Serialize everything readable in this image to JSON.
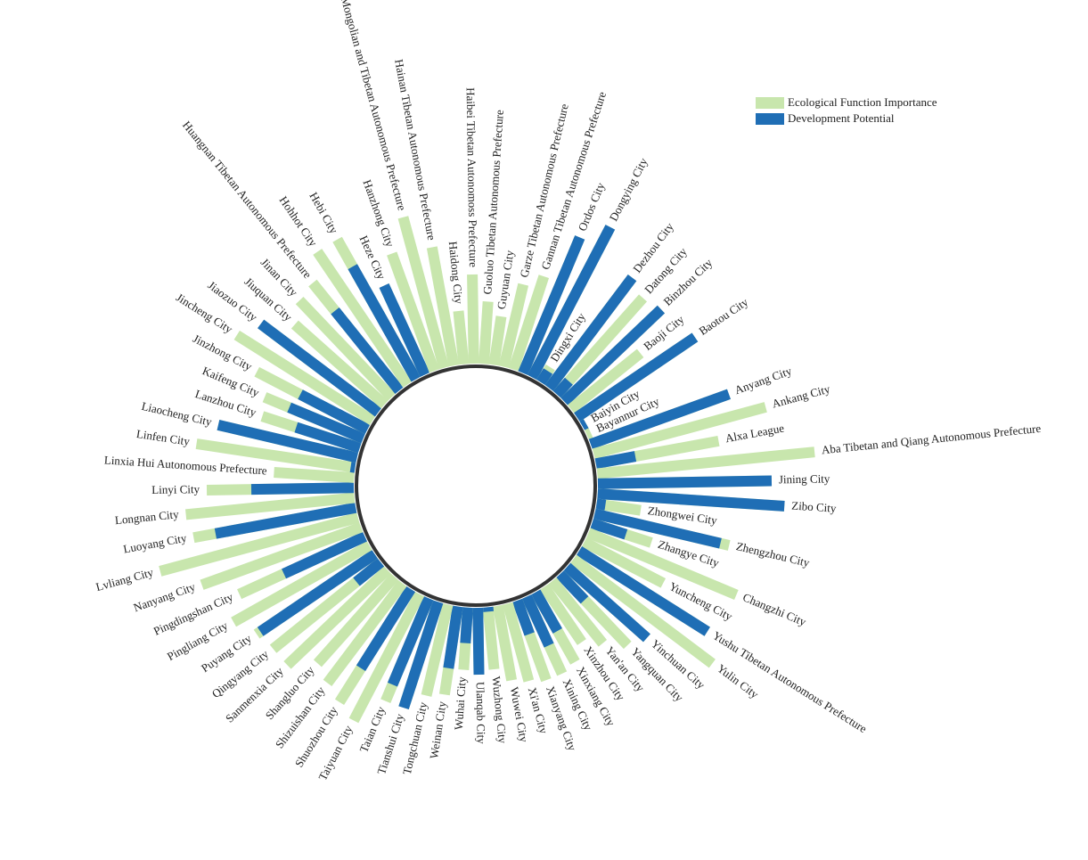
{
  "colors": {
    "eco": "#c8e6ad",
    "dev": "#1f6eb5",
    "ring": "#333333"
  },
  "legend": {
    "eco_label": "Ecological Function Importance",
    "dev_label": "Development Potential"
  },
  "chart_data": {
    "type": "radial-bar",
    "series_names": [
      "Ecological Function Importance",
      "Development Potential"
    ],
    "categories": [
      "Haidong City",
      "Haibei Tibetan Autonomoss Prefecture",
      "Guoluo Tibetan Autonomous Prefecture",
      "Guyuan City",
      "Garze Tibetan Autonomous Prefecture",
      "Gannan Tibetan Autonomous Prefecture",
      "Ordos City",
      "Dongying City",
      "Dingxi City",
      "Dezhou City",
      "Datong City",
      "Binzhou City",
      "Baoji City",
      "Baotou City",
      "Baiyin City",
      "Bayannur City",
      "Anyang City",
      "Ankang City",
      "Alxa League",
      "Aba Tibetan and Qiang Autonomous Prefecture",
      "Jining City",
      "Zibo City",
      "Zhongwei City",
      "Zhengzhou City",
      "Zhangye City",
      "Changzhi City",
      "Yuncheng City",
      "Yushu Tibetan Autonomous Prefecture",
      "Yulin City",
      "Yinchuan City",
      "Yangquan City",
      "Yan'an City",
      "Xinzhou City",
      "Xinxiang City",
      "Xining City",
      "Xianyang City",
      "Xi'an City",
      "Wuwei City",
      "Wuzhong City",
      "Ulanqab City",
      "Wuhai City",
      "Weinan City",
      "Tongchuan City",
      "Tianshui City",
      "Taian City",
      "Taiyuan City",
      "Shuozhou City",
      "Shizuishan City",
      "Shangluo City",
      "Sanmenxia City",
      "Qingyang City",
      "Puyang City",
      "Pingliang City",
      "Pingdingshan City",
      "Nanyang City",
      "Lvliang City",
      "Luoyang City",
      "Longnan City",
      "Linyi City",
      "Linxia Hui Autonomous Prefecture",
      "Linfen City",
      "Liaocheng City",
      "Lanzhou City",
      "Kaifeng City",
      "Jinzhong City",
      "Jincheng City",
      "Jiaozuo City",
      "Jiuquan City",
      "Jinan City",
      "Huangnan Tibetan Autonomous Prefecture",
      "Hohhot City",
      "Hebi City",
      "Heze City",
      "Hanzhong City",
      "Haixi Mongolian and Tibetan Autonomous Prefecture",
      "Hainan Tibetan Autonomous Prefecture"
    ],
    "eco": [
      60,
      100,
      70,
      55,
      95,
      110,
      35,
      30,
      20,
      60,
      145,
      100,
      100,
      100,
      5,
      5,
      40,
      200,
      140,
      245,
      175,
      185,
      50,
      155,
      70,
      180,
      100,
      140,
      195,
      120,
      110,
      90,
      75,
      90,
      95,
      95,
      90,
      85,
      70,
      55,
      70,
      100,
      105,
      110,
      125,
      160,
      150,
      140,
      130,
      155,
      155,
      160,
      175,
      155,
      190,
      230,
      185,
      190,
      165,
      90,
      180,
      130,
      115,
      120,
      140,
      180,
      155,
      135,
      150,
      155,
      180,
      180,
      20,
      140,
      175,
      135
    ],
    "dev": [
      0,
      0,
      0,
      0,
      0,
      0,
      165,
      190,
      15,
      155,
      20,
      150,
      0,
      160,
      5,
      0,
      165,
      0,
      45,
      0,
      195,
      210,
      10,
      145,
      40,
      0,
      0,
      170,
      0,
      120,
      40,
      0,
      0,
      50,
      60,
      40,
      0,
      0,
      5,
      75,
      40,
      70,
      0,
      125,
      105,
      0,
      105,
      0,
      0,
      0,
      35,
      155,
      0,
      100,
      0,
      0,
      160,
      0,
      115,
      0,
      5,
      160,
      75,
      90,
      85,
      0,
      165,
      0,
      0,
      115,
      0,
      145,
      110,
      0,
      0,
      0
    ],
    "radial_axis": "none",
    "grid": false,
    "legend_position": "top-right"
  }
}
